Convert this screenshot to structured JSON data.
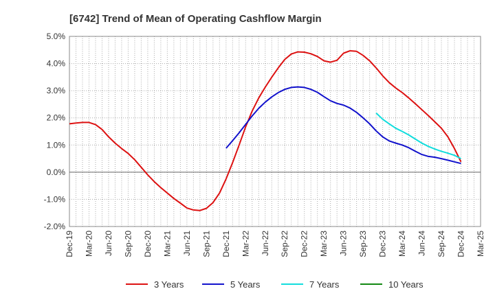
{
  "chart_data": {
    "type": "line",
    "title": "[6742]  Trend of Mean of Operating Cashflow Margin",
    "xlabel": "",
    "ylabel": "",
    "x_range": [
      "2019-12",
      "2025-03"
    ],
    "x_ticks": [
      "Dec-19",
      "Mar-20",
      "Jun-20",
      "Sep-20",
      "Dec-20",
      "Mar-21",
      "Jun-21",
      "Sep-21",
      "Dec-21",
      "Mar-22",
      "Jun-22",
      "Sep-22",
      "Dec-22",
      "Mar-23",
      "Jun-23",
      "Sep-23",
      "Dec-23",
      "Mar-24",
      "Jun-24",
      "Sep-24",
      "Dec-24",
      "Mar-25"
    ],
    "ylim": [
      -2.0,
      5.0
    ],
    "y_ticks": [
      -2.0,
      -1.0,
      0.0,
      1.0,
      2.0,
      3.0,
      4.0,
      5.0
    ],
    "y_tick_labels": [
      "-2.0%",
      "-1.0%",
      "0.0%",
      "1.0%",
      "2.0%",
      "3.0%",
      "4.0%",
      "5.0%"
    ],
    "grid": true,
    "legend_position": "bottom",
    "series": [
      {
        "name": "3 Years",
        "color": "#dd1111",
        "points": [
          [
            "2019-12",
            1.78
          ],
          [
            "2020-01",
            1.81
          ],
          [
            "2020-02",
            1.83
          ],
          [
            "2020-03",
            1.83
          ],
          [
            "2020-04",
            1.75
          ],
          [
            "2020-05",
            1.57
          ],
          [
            "2020-06",
            1.3
          ],
          [
            "2020-07",
            1.07
          ],
          [
            "2020-08",
            0.87
          ],
          [
            "2020-09",
            0.69
          ],
          [
            "2020-10",
            0.46
          ],
          [
            "2020-11",
            0.18
          ],
          [
            "2020-12",
            -0.1
          ],
          [
            "2021-01",
            -0.35
          ],
          [
            "2021-02",
            -0.57
          ],
          [
            "2021-03",
            -0.77
          ],
          [
            "2021-04",
            -0.97
          ],
          [
            "2021-05",
            -1.14
          ],
          [
            "2021-06",
            -1.32
          ],
          [
            "2021-07",
            -1.39
          ],
          [
            "2021-08",
            -1.41
          ],
          [
            "2021-09",
            -1.33
          ],
          [
            "2021-10",
            -1.12
          ],
          [
            "2021-11",
            -0.77
          ],
          [
            "2021-12",
            -0.25
          ],
          [
            "2022-01",
            0.35
          ],
          [
            "2022-02",
            1.0
          ],
          [
            "2022-03",
            1.67
          ],
          [
            "2022-04",
            2.25
          ],
          [
            "2022-05",
            2.73
          ],
          [
            "2022-06",
            3.13
          ],
          [
            "2022-07",
            3.5
          ],
          [
            "2022-08",
            3.84
          ],
          [
            "2022-09",
            4.15
          ],
          [
            "2022-10",
            4.35
          ],
          [
            "2022-11",
            4.43
          ],
          [
            "2022-12",
            4.42
          ],
          [
            "2023-01",
            4.36
          ],
          [
            "2023-02",
            4.26
          ],
          [
            "2023-03",
            4.1
          ],
          [
            "2023-04",
            4.05
          ],
          [
            "2023-05",
            4.12
          ],
          [
            "2023-06",
            4.38
          ],
          [
            "2023-07",
            4.47
          ],
          [
            "2023-08",
            4.45
          ],
          [
            "2023-09",
            4.3
          ],
          [
            "2023-10",
            4.1
          ],
          [
            "2023-11",
            3.84
          ],
          [
            "2023-12",
            3.55
          ],
          [
            "2024-01",
            3.3
          ],
          [
            "2024-02",
            3.1
          ],
          [
            "2024-03",
            2.93
          ],
          [
            "2024-04",
            2.73
          ],
          [
            "2024-05",
            2.52
          ],
          [
            "2024-06",
            2.3
          ],
          [
            "2024-07",
            2.08
          ],
          [
            "2024-08",
            1.85
          ],
          [
            "2024-09",
            1.62
          ],
          [
            "2024-10",
            1.3
          ],
          [
            "2024-11",
            0.87
          ],
          [
            "2024-12",
            0.38
          ]
        ]
      },
      {
        "name": "5 Years",
        "color": "#1111cc",
        "points": [
          [
            "2021-12",
            0.88
          ],
          [
            "2022-01",
            1.16
          ],
          [
            "2022-02",
            1.45
          ],
          [
            "2022-03",
            1.76
          ],
          [
            "2022-04",
            2.07
          ],
          [
            "2022-05",
            2.35
          ],
          [
            "2022-06",
            2.58
          ],
          [
            "2022-07",
            2.77
          ],
          [
            "2022-08",
            2.93
          ],
          [
            "2022-09",
            3.05
          ],
          [
            "2022-10",
            3.12
          ],
          [
            "2022-11",
            3.14
          ],
          [
            "2022-12",
            3.12
          ],
          [
            "2023-01",
            3.05
          ],
          [
            "2023-02",
            2.94
          ],
          [
            "2023-03",
            2.78
          ],
          [
            "2023-04",
            2.63
          ],
          [
            "2023-05",
            2.53
          ],
          [
            "2023-06",
            2.47
          ],
          [
            "2023-07",
            2.36
          ],
          [
            "2023-08",
            2.2
          ],
          [
            "2023-09",
            2.0
          ],
          [
            "2023-10",
            1.78
          ],
          [
            "2023-11",
            1.52
          ],
          [
            "2023-12",
            1.3
          ],
          [
            "2024-01",
            1.15
          ],
          [
            "2024-02",
            1.07
          ],
          [
            "2024-03",
            1.0
          ],
          [
            "2024-04",
            0.9
          ],
          [
            "2024-05",
            0.77
          ],
          [
            "2024-06",
            0.65
          ],
          [
            "2024-07",
            0.58
          ],
          [
            "2024-08",
            0.55
          ],
          [
            "2024-09",
            0.5
          ],
          [
            "2024-10",
            0.44
          ],
          [
            "2024-11",
            0.38
          ],
          [
            "2024-12",
            0.32
          ]
        ]
      },
      {
        "name": "7 Years",
        "color": "#11dddd",
        "points": [
          [
            "2023-11",
            2.18
          ],
          [
            "2023-12",
            1.95
          ],
          [
            "2024-01",
            1.78
          ],
          [
            "2024-02",
            1.62
          ],
          [
            "2024-03",
            1.5
          ],
          [
            "2024-04",
            1.37
          ],
          [
            "2024-05",
            1.22
          ],
          [
            "2024-06",
            1.07
          ],
          [
            "2024-07",
            0.95
          ],
          [
            "2024-08",
            0.85
          ],
          [
            "2024-09",
            0.77
          ],
          [
            "2024-10",
            0.7
          ],
          [
            "2024-11",
            0.62
          ],
          [
            "2024-12",
            0.5
          ]
        ]
      },
      {
        "name": "10 Years",
        "color": "#118811",
        "points": []
      }
    ]
  }
}
